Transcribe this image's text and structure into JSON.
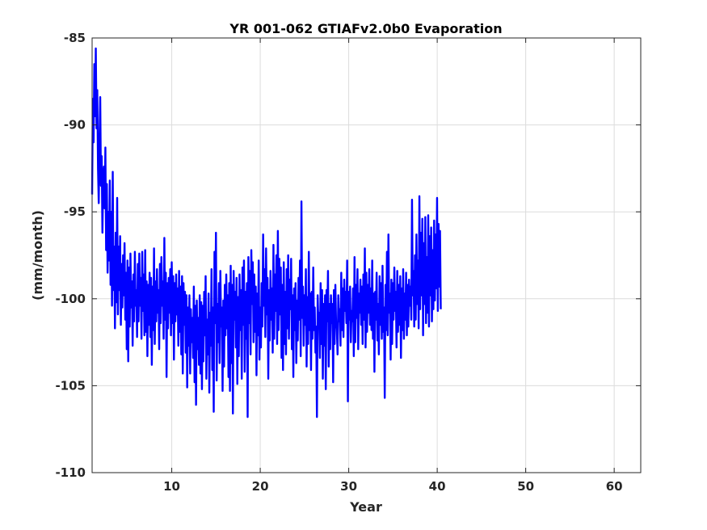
{
  "chart_data": {
    "type": "line",
    "title": "YR 001-062 GTIAFv2.0b0 Evaporation",
    "xlabel": "Year",
    "ylabel": "(mm/month)",
    "xlim": [
      1,
      63
    ],
    "ylim": [
      -110,
      -85
    ],
    "xticks": [
      10,
      20,
      30,
      40,
      50,
      60
    ],
    "yticks": [
      -85,
      -90,
      -95,
      -100,
      -105,
      -110
    ],
    "grid": true,
    "legend": "none",
    "colors": {
      "line": "#0000ff",
      "grid": "#dcdcdc",
      "axes": "#262626"
    },
    "series": [
      {
        "x_start": 1.0,
        "x_step": 0.0833,
        "values": [
          -94,
          -88.5,
          -91,
          -86.5,
          -89.5,
          -85.6,
          -90.2,
          -88,
          -92.5,
          -94.5,
          -91,
          -88.4,
          -93.5,
          -91.8,
          -96.2,
          -93,
          -92.4,
          -94.8,
          -91.3,
          -97.2,
          -93.4,
          -98.5,
          -95,
          -97.8,
          -93.2,
          -99.2,
          -95,
          -100.4,
          -92.7,
          -99.5,
          -97,
          -101.7,
          -96.2,
          -100.2,
          -94.2,
          -100.9,
          -97,
          -99.5,
          -96.4,
          -101.5,
          -98,
          -100.5,
          -97.5,
          -99.8,
          -96.8,
          -101.2,
          -98.5,
          -102.9,
          -97.8,
          -103.6,
          -98.2,
          -101.6,
          -97.4,
          -100.5,
          -99,
          -102.7,
          -98.6,
          -101.3,
          -97.3,
          -100.4,
          -99.5,
          -102.2,
          -98,
          -101.3,
          -97.4,
          -100.4,
          -98.8,
          -102.3,
          -97.3,
          -100.7,
          -98.6,
          -102.1,
          -97.2,
          -101.9,
          -99,
          -103.3,
          -99.2,
          -101.5,
          -98.5,
          -102.2,
          -98.8,
          -103.8,
          -99.3,
          -101.8,
          -97.1,
          -102.6,
          -99,
          -101.3,
          -98.3,
          -100.8,
          -99.5,
          -102.9,
          -98,
          -101.4,
          -97.6,
          -100.4,
          -99,
          -102.3,
          -96.5,
          -101.2,
          -98.5,
          -104.5,
          -99.1,
          -101.7,
          -98.8,
          -100.8,
          -98.3,
          -102.1,
          -97.9,
          -101.4,
          -98.7,
          -103.5,
          -99.1,
          -101.3,
          -98.6,
          -100.9,
          -99.4,
          -102.7,
          -98.4,
          -101.9,
          -99.3,
          -103.2,
          -98.7,
          -104.3,
          -99.1,
          -101.5,
          -99.6,
          -103.1,
          -99.8,
          -105.1,
          -100.5,
          -102.7,
          -99.8,
          -104.3,
          -100.6,
          -102.5,
          -101.1,
          -103.4,
          -99.3,
          -104.8,
          -100.4,
          -106.1,
          -100.1,
          -102.9,
          -101.1,
          -103.8,
          -99.8,
          -104.3,
          -100.2,
          -105.2,
          -100.4,
          -103.6,
          -99.6,
          -102.1,
          -98.7,
          -104.6,
          -101.2,
          -103.2,
          -99.7,
          -105.4,
          -100.8,
          -102.7,
          -98.3,
          -104.1,
          -100.5,
          -106.5,
          -97.3,
          -101.4,
          -96.2,
          -104.7,
          -100.3,
          -102.5,
          -99.1,
          -103.7,
          -98.4,
          -101.6,
          -100.5,
          -105.3,
          -100.1,
          -103.9,
          -99.2,
          -102.1,
          -98.6,
          -101.7,
          -99.8,
          -104.5,
          -99.1,
          -105.3,
          -98.1,
          -103.7,
          -99.2,
          -106.6,
          -98.4,
          -101.2,
          -99.6,
          -102.8,
          -98.8,
          -104.9,
          -99.9,
          -103.3,
          -98.6,
          -101.8,
          -99.5,
          -104.6,
          -98.2,
          -101.5,
          -97.8,
          -104.2,
          -99.6,
          -102.3,
          -99.1,
          -106.8,
          -97.6,
          -101.4,
          -98.4,
          -103.2,
          -97.2,
          -100.3,
          -97.9,
          -102.5,
          -98.6,
          -101.9,
          -99.3,
          -104.4,
          -99.7,
          -102.1,
          -97.8,
          -103.5,
          -100.5,
          -102.8,
          -99.1,
          -101.6,
          -96.3,
          -100.4,
          -98.3,
          -102.2,
          -97.1,
          -100.9,
          -98.8,
          -104.6,
          -99.5,
          -102.4,
          -98.4,
          -101.2,
          -99.4,
          -103.1,
          -96.9,
          -102.3,
          -98.6,
          -100.7,
          -97.5,
          -102.6,
          -96.1,
          -101.8,
          -97.7,
          -100.9,
          -98.2,
          -103.4,
          -99.2,
          -104.1,
          -97.9,
          -102.6,
          -99.6,
          -103.2,
          -98.3,
          -101.7,
          -97.5,
          -102.3,
          -98.9,
          -100.6,
          -97.7,
          -102.9,
          -99.8,
          -104.5,
          -99.4,
          -101.8,
          -99.1,
          -103.7,
          -100.1,
          -102.4,
          -98.8,
          -101.2,
          -97.8,
          -103.3,
          -94.4,
          -101.1,
          -99.3,
          -102.7,
          -99.8,
          -101.5,
          -98.3,
          -103.9,
          -99.9,
          -102.6,
          -97.3,
          -101.8,
          -99.7,
          -104.1,
          -99.6,
          -102.3,
          -98.2,
          -101.8,
          -100.5,
          -103.1,
          -101.6,
          -106.8,
          -99.8,
          -101.5,
          -100.8,
          -103.4,
          -99.1,
          -102.6,
          -99.5,
          -104.6,
          -100.3,
          -102.7,
          -99.8,
          -105.2,
          -99.5,
          -101.3,
          -98.4,
          -103.9,
          -100.3,
          -102.9,
          -99.8,
          -101.4,
          -100.3,
          -104.8,
          -99.5,
          -102.6,
          -99.2,
          -101.5,
          -101.7,
          -103.2,
          -99.8,
          -101.3,
          -100.6,
          -102.7,
          -98.5,
          -101.8,
          -99.4,
          -102.2,
          -98.9,
          -100.7,
          -99.6,
          -101.4,
          -97.8,
          -105.9,
          -99.6,
          -101.2,
          -99.3,
          -102.5,
          -100.7,
          -101.3,
          -99.4,
          -103.3,
          -97.6,
          -102.5,
          -99.2,
          -101.1,
          -98.3,
          -102.9,
          -99.7,
          -100.8,
          -98.9,
          -101.5,
          -99.3,
          -102.6,
          -98.6,
          -101.2,
          -97.1,
          -102.8,
          -98.5,
          -101.9,
          -99.2,
          -100.8,
          -98.3,
          -101.5,
          -99.4,
          -101.8,
          -97.8,
          -102.3,
          -99.7,
          -104.2,
          -99.6,
          -101.2,
          -98.5,
          -102.4,
          -100.3,
          -103.2,
          -98.7,
          -101.5,
          -99.1,
          -102.3,
          -98.1,
          -101.9,
          -100.5,
          -105.7,
          -99.2,
          -101.8,
          -97.3,
          -102.1,
          -96.3,
          -100.8,
          -99.7,
          -103.5,
          -98.9,
          -102.6,
          -99.1,
          -101.2,
          -98.2,
          -100.7,
          -99.6,
          -102.8,
          -98.4,
          -101.9,
          -99.2,
          -101.5,
          -98.7,
          -103.4,
          -99.4,
          -101.8,
          -98.3,
          -102.3,
          -99.7,
          -101.2,
          -98.5,
          -102.1,
          -99.2,
          -101.6,
          -98.9,
          -100.4,
          -99.3,
          -101.2,
          -94.3,
          -99.8,
          -98.4,
          -101.6,
          -97.5,
          -101.2,
          -96.3,
          -100.3,
          -97.8,
          -101.7,
          -94.1,
          -100.6,
          -96.2,
          -99.8,
          -95.4,
          -102.1,
          -96.8,
          -100.3,
          -95.3,
          -101.4,
          -97.6,
          -100.8,
          -95.2,
          -101.6,
          -96.4,
          -99.8,
          -95.9,
          -101.3,
          -97.2,
          -100.6,
          -95.5,
          -100.1,
          -96.3,
          -99.4,
          -94.2,
          -100.7,
          -95.7,
          -99.3,
          -96.1,
          -100.6
        ]
      }
    ]
  }
}
